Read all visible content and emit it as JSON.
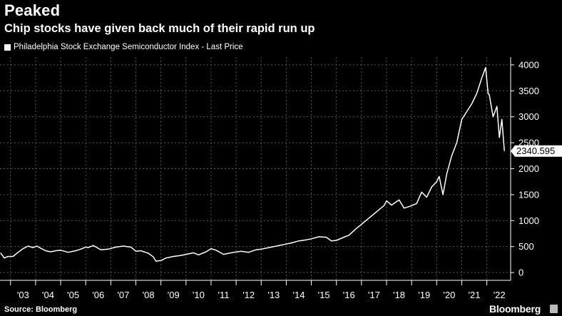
{
  "header": {
    "title": "Peaked",
    "subtitle": "Chip stocks have given back much of their rapid run up"
  },
  "legend": {
    "label": "Philadelphia Stock Exchange Semiconductor Index - Last Price"
  },
  "footer": {
    "source": "Source: Bloomberg",
    "brand": "Bloomberg"
  },
  "colors": {
    "background": "#000000",
    "line": "#ffffff",
    "grid": "#555555",
    "text": "#ffffff"
  },
  "chart_data": {
    "type": "line",
    "title": "Peaked",
    "subtitle": "Chip stocks have given back much of their rapid run up",
    "xlabel": "",
    "ylabel": "",
    "x_tick_labels": [
      "'03",
      "'04",
      "'05",
      "'06",
      "'07",
      "'08",
      "'09",
      "'10",
      "'11",
      "'12",
      "'13",
      "'14",
      "'15",
      "'16",
      "'17",
      "'18",
      "'19",
      "'20",
      "'21",
      "'22"
    ],
    "y_ticks": [
      0,
      500,
      1000,
      1500,
      2000,
      2500,
      3000,
      3500,
      4000
    ],
    "ylim": [
      -150,
      4150
    ],
    "xlim": [
      2002.58,
      2022.95
    ],
    "y_axis_side": "right",
    "grid": "dashed vertical and horizontal",
    "last_value_label": "2340.595",
    "series": [
      {
        "name": "Philadelphia Stock Exchange Semiconductor Index - Last Price",
        "x": [
          2002.6,
          2002.75,
          2002.9,
          2003.1,
          2003.3,
          2003.5,
          2003.7,
          2003.9,
          2004.05,
          2004.2,
          2004.4,
          2004.6,
          2004.8,
          2005.0,
          2005.3,
          2005.6,
          2005.8,
          2006.0,
          2006.1,
          2006.3,
          2006.6,
          2006.9,
          2007.2,
          2007.5,
          2007.8,
          2008.0,
          2008.2,
          2008.5,
          2008.7,
          2008.8,
          2009.0,
          2009.2,
          2009.5,
          2009.8,
          2010.0,
          2010.3,
          2010.5,
          2010.8,
          2011.0,
          2011.2,
          2011.5,
          2011.7,
          2011.9,
          2012.2,
          2012.5,
          2012.8,
          2013.0,
          2013.3,
          2013.6,
          2013.9,
          2014.2,
          2014.5,
          2014.8,
          2015.0,
          2015.3,
          2015.6,
          2015.8,
          2016.0,
          2016.2,
          2016.5,
          2016.8,
          2017.0,
          2017.3,
          2017.6,
          2017.9,
          2018.0,
          2018.2,
          2018.5,
          2018.7,
          2018.95,
          2019.2,
          2019.4,
          2019.6,
          2019.8,
          2020.0,
          2020.1,
          2020.25,
          2020.4,
          2020.6,
          2020.8,
          2021.0,
          2021.2,
          2021.4,
          2021.6,
          2021.8,
          2021.95,
          2022.05,
          2022.1,
          2022.25,
          2022.4,
          2022.5,
          2022.6,
          2022.7
        ],
        "y": [
          380,
          280,
          310,
          310,
          390,
          460,
          510,
          480,
          510,
          470,
          420,
          400,
          420,
          430,
          390,
          420,
          450,
          490,
          480,
          520,
          440,
          450,
          490,
          510,
          490,
          410,
          420,
          370,
          300,
          220,
          230,
          280,
          310,
          330,
          350,
          380,
          340,
          400,
          460,
          430,
          350,
          370,
          390,
          410,
          390,
          440,
          450,
          480,
          510,
          540,
          570,
          610,
          630,
          650,
          690,
          680,
          610,
          620,
          660,
          720,
          850,
          930,
          1050,
          1170,
          1290,
          1380,
          1300,
          1400,
          1240,
          1280,
          1330,
          1550,
          1450,
          1650,
          1750,
          1850,
          1500,
          1900,
          2250,
          2500,
          2950,
          3100,
          3250,
          3450,
          3750,
          3950,
          3450,
          3420,
          3000,
          3200,
          2600,
          2950,
          2340.595
        ]
      }
    ]
  }
}
